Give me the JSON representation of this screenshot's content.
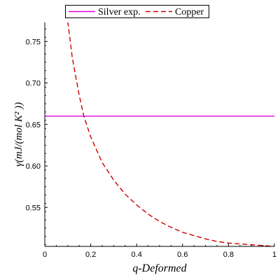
{
  "chart_data": {
    "type": "line",
    "xlabel": "q-Deformed",
    "ylabel": "γ(mJ/(mol K² ))",
    "xlim": [
      0,
      1
    ],
    "ylim": [
      0.503,
      0.773
    ],
    "x_ticks": [
      "0",
      "0.2",
      "0.4",
      "0.6",
      "0.8",
      "1"
    ],
    "x_tick_values": [
      0,
      0.2,
      0.4,
      0.6,
      0.8,
      1
    ],
    "y_ticks": [
      "0.55",
      "0.60",
      "0.65",
      "0.70",
      "0.75"
    ],
    "y_tick_values": [
      0.55,
      0.6,
      0.65,
      0.7,
      0.75
    ],
    "grid": false,
    "legend_position": "top",
    "series": [
      {
        "name": "Silver exp.",
        "style": "solid",
        "color": "#e000e0",
        "x": [
          0,
          1
        ],
        "y": [
          0.66,
          0.66
        ]
      },
      {
        "name": "Copper",
        "style": "dashed",
        "color": "#cc0000",
        "x": [
          0.1,
          0.12,
          0.15,
          0.17,
          0.2,
          0.25,
          0.3,
          0.35,
          0.4,
          0.45,
          0.5,
          0.55,
          0.6,
          0.65,
          0.7,
          0.75,
          0.8,
          0.85,
          0.9,
          0.95,
          1.0
        ],
        "y": [
          0.774,
          0.73,
          0.685,
          0.66,
          0.635,
          0.604,
          0.583,
          0.566,
          0.553,
          0.542,
          0.533,
          0.526,
          0.52,
          0.516,
          0.512,
          0.509,
          0.507,
          0.506,
          0.505,
          0.504,
          0.503
        ]
      }
    ]
  }
}
